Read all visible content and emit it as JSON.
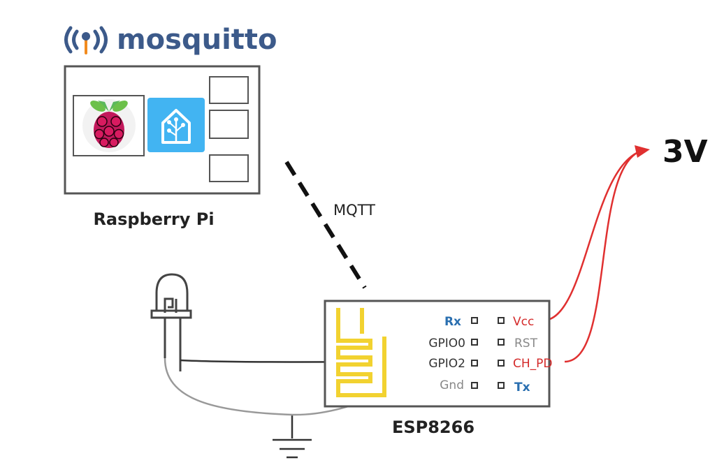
{
  "logo": {
    "text": "mosquitto"
  },
  "raspberry_pi": {
    "label": "Raspberry Pi"
  },
  "link": {
    "label": "MQTT"
  },
  "esp": {
    "label": "ESP8266",
    "pins_left": [
      "Rx",
      "GPIO0",
      "GPIO2",
      "Gnd"
    ],
    "pins_right": [
      "Vcc",
      "RST",
      "CH_PD",
      "Tx"
    ]
  },
  "power": {
    "label": "3V"
  },
  "colors": {
    "outline": "#555555",
    "blue_pin": "#2a6fb0",
    "red_pin": "#d42a2a",
    "gray_pin": "#888888",
    "dark_pin": "#333333",
    "wire_red": "#e03030",
    "antenna": "#f2d230",
    "ha_blue": "#42b4f2",
    "logo_blue": "#3c5a8a",
    "logo_orange": "#f28b1e"
  }
}
